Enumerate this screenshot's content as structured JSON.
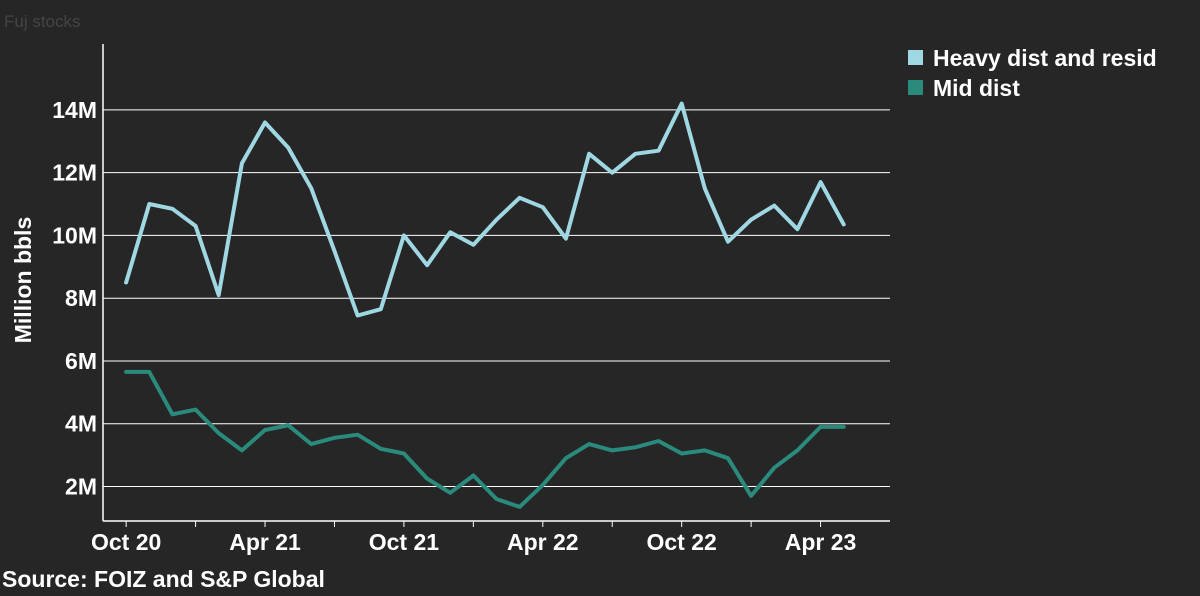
{
  "title": "Fuj stocks",
  "source": "Source: FOIZ and S&P Global",
  "colors": {
    "background": "#262626",
    "grid": "#ffffff",
    "heavy": "#9fd8e3",
    "mid": "#2a8a7c",
    "text": "#ffffff"
  },
  "chart_data": {
    "type": "line",
    "ylabel": "Million bbls",
    "ylim": [
      0.9,
      16.1
    ],
    "yticks": [
      2,
      4,
      6,
      8,
      10,
      12,
      14
    ],
    "ytick_labels": [
      "2M",
      "4M",
      "6M",
      "8M",
      "10M",
      "12M",
      "14M"
    ],
    "xticks": [
      0,
      6,
      12,
      18,
      24,
      30
    ],
    "xtick_labels": [
      "Oct 20",
      "Apr 21",
      "Oct 21",
      "Apr 22",
      "Oct 22",
      "Apr 23"
    ],
    "xlim": [
      -1,
      33
    ],
    "x": [
      "Oct 20",
      "Nov 20",
      "Dec 20",
      "Jan 21",
      "Feb 21",
      "Mar 21",
      "Apr 21",
      "May 21",
      "Jun 21",
      "Jul 21",
      "Aug 21",
      "Sep 21",
      "Oct 21",
      "Nov 21",
      "Dec 21",
      "Jan 22",
      "Feb 22",
      "Mar 22",
      "Apr 22",
      "May 22",
      "Jun 22",
      "Jul 22",
      "Aug 22",
      "Sep 22",
      "Oct 22",
      "Nov 22",
      "Dec 22",
      "Jan 23",
      "Feb 23",
      "Mar 23",
      "Apr 23",
      "May 23"
    ],
    "legend_position": "top-right",
    "grid": true,
    "series": [
      {
        "name": "Heavy dist and resid",
        "color": "#9fd8e3",
        "values": [
          8.5,
          11.0,
          10.85,
          10.3,
          8.1,
          12.3,
          13.6,
          12.8,
          11.5,
          9.5,
          7.45,
          7.65,
          10.0,
          9.05,
          10.1,
          9.7,
          10.5,
          11.2,
          10.9,
          9.9,
          12.6,
          12.0,
          12.6,
          12.7,
          14.2,
          11.5,
          9.8,
          10.5,
          10.95,
          10.2,
          11.7,
          10.35
        ]
      },
      {
        "name": "Mid dist",
        "color": "#2a8a7c",
        "values": [
          5.65,
          5.65,
          4.3,
          4.45,
          3.7,
          3.15,
          3.8,
          3.95,
          3.35,
          3.55,
          3.65,
          3.2,
          3.05,
          2.25,
          1.8,
          2.35,
          1.6,
          1.35,
          2.05,
          2.9,
          3.35,
          3.15,
          3.25,
          3.45,
          3.05,
          3.15,
          2.9,
          1.7,
          2.6,
          3.15,
          3.9,
          3.9
        ]
      }
    ]
  }
}
